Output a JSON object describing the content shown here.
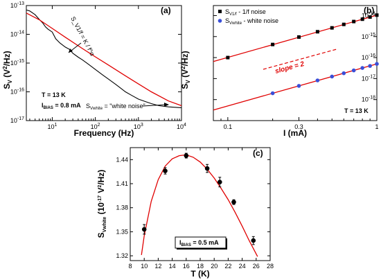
{
  "chart_data": [
    {
      "panel": "(a)",
      "type": "line",
      "xscale": "log",
      "yscale": "log",
      "xlim": [
        2.5,
        10000
      ],
      "ylim": [
        1e-17,
        1e-13
      ],
      "xlabel": "Frequency (Hz)",
      "ylabel": "S_V (V^2/Hz)",
      "xticks": [
        "10^1",
        "10^2",
        "10^3",
        "10^4"
      ],
      "yticks": [
        "10^-17",
        "10^-16",
        "10^-15",
        "10^-14",
        "10^-13"
      ],
      "annotations": {
        "fit_label": "S_V1/f = K / f^α",
        "temperature": "T = 13 K",
        "bias_prefix": "I",
        "bias_sub": "BIAS",
        "bias_value": " = 0.8 mA",
        "white_prefix": "S",
        "white_sub": "Vwhite",
        "white_value": " = \"white noise\""
      },
      "series": [
        {
          "type": "measured",
          "color": "#000000",
          "x": [
            2.5,
            3,
            4,
            5,
            6,
            7,
            8,
            10,
            12,
            15,
            20,
            25,
            30,
            40,
            50,
            70,
            100,
            150,
            200,
            300,
            500,
            700,
            1000,
            1500,
            2000,
            3000,
            5000,
            7000,
            10000
          ],
          "y": [
            7e-14,
            6.5e-14,
            4.8e-14,
            3.3e-14,
            2.5e-14,
            1.8e-14,
            1.5e-14,
            1.2e-14,
            7e-15,
            5e-15,
            3.6e-15,
            3e-15,
            2.2e-15,
            1.6e-15,
            1.3e-15,
            9e-16,
            6e-16,
            3.8e-16,
            2.8e-16,
            1.8e-16,
            1e-16,
            7.5e-17,
            5.6e-17,
            4.5e-17,
            3.9e-17,
            3.3e-17,
            3e-17,
            2.9e-17,
            2.8e-17
          ]
        },
        {
          "type": "fit",
          "color": "#e00000",
          "x": [
            2.5,
            5,
            10,
            20,
            50,
            100,
            200,
            500,
            1000,
            2000,
            5000,
            10000
          ],
          "y": [
            5.5e-14,
            3.2e-14,
            1.6e-14,
            7.9e-15,
            3.2e-15,
            1.65e-15,
            8.6e-16,
            3.6e-16,
            1.88e-16,
            1e-16,
            4.8e-17,
            3.3e-17
          ]
        }
      ]
    },
    {
      "panel": "(b)",
      "type": "scatter",
      "xscale": "log",
      "yscale": "log",
      "xlim": [
        0.08,
        1.0
      ],
      "ylim": [
        1e-19,
        3e-14
      ],
      "xlabel": "I (mA)",
      "ylabel": "S_V (V^2/Hz)",
      "xticks": [
        "0.1",
        "0.3",
        "1"
      ],
      "yticks": [
        "10^-18",
        "10^-17",
        "10^-16",
        "10^-15",
        "10^-14"
      ],
      "annotations": {
        "slope": "slope = 2",
        "temperature": "T = 13 K"
      },
      "legend_placement": "top-right",
      "series": [
        {
          "name_prefix": "S",
          "name_sub": "V1/f",
          "name_suffix": " - 1/f noise",
          "marker": "square",
          "color": "#000000",
          "x": [
            0.1,
            0.2,
            0.3,
            0.4,
            0.5,
            0.6,
            0.7,
            0.8,
            0.9,
            1.0
          ],
          "y": [
            1e-16,
            4.2e-16,
            9.5e-16,
            1.7e-15,
            2.6e-15,
            3.8e-15,
            5.2e-15,
            6.7e-15,
            8.5e-15,
            1.05e-14
          ],
          "fit": [
            6.5e-17,
            1.05e-14
          ]
        },
        {
          "name_prefix": "S",
          "name_sub": "Vwhite",
          "name_suffix": " - white noise",
          "marker": "circle",
          "color": "#3a4fd8",
          "x": [
            0.2,
            0.3,
            0.4,
            0.5,
            0.6,
            0.7,
            0.8,
            0.9,
            1.0
          ],
          "y": [
            2e-18,
            4.5e-18,
            8.2e-18,
            1.25e-17,
            1.8e-17,
            2.45e-17,
            3.2e-17,
            4e-17,
            5e-17
          ],
          "fit": [
            3.2e-19,
            5e-17
          ]
        }
      ]
    },
    {
      "panel": "(c)",
      "type": "scatter",
      "xlim": [
        8,
        28
      ],
      "ylim": [
        1.314,
        1.455
      ],
      "xlabel": "T (K)",
      "ylabel": "S_Vwhite (10^-17 V^2/Hz)",
      "xticks": [
        "8",
        "10",
        "12",
        "14",
        "16",
        "18",
        "20",
        "22",
        "24",
        "26",
        "28"
      ],
      "yticks": [
        "1.32",
        "1.35",
        "1.38",
        "1.41",
        "1.44"
      ],
      "annotations": {
        "bias_prefix": "I",
        "bias_sub": "BIAS",
        "bias_value": " = 0.5 mA"
      },
      "series": [
        {
          "type": "measured",
          "marker": "circle",
          "color": "#000000",
          "x": [
            10,
            13,
            16,
            19,
            20.8,
            22.8,
            25.6
          ],
          "y": [
            1.353,
            1.426,
            1.445,
            1.429,
            1.412,
            1.387,
            1.339
          ],
          "err": [
            0.006,
            0.004,
            0.003,
            0.005,
            0.006,
            0.003,
            0.005
          ]
        },
        {
          "type": "fit",
          "color": "#e00000",
          "x": [
            9.6,
            10,
            11,
            12,
            13,
            14,
            15,
            16,
            17,
            18,
            19,
            20,
            21,
            22,
            23,
            24,
            25,
            26.2
          ],
          "y": [
            1.321,
            1.345,
            1.388,
            1.415,
            1.432,
            1.441,
            1.445,
            1.446,
            1.443,
            1.437,
            1.428,
            1.417,
            1.404,
            1.39,
            1.374,
            1.357,
            1.339,
            1.319
          ]
        }
      ]
    }
  ]
}
